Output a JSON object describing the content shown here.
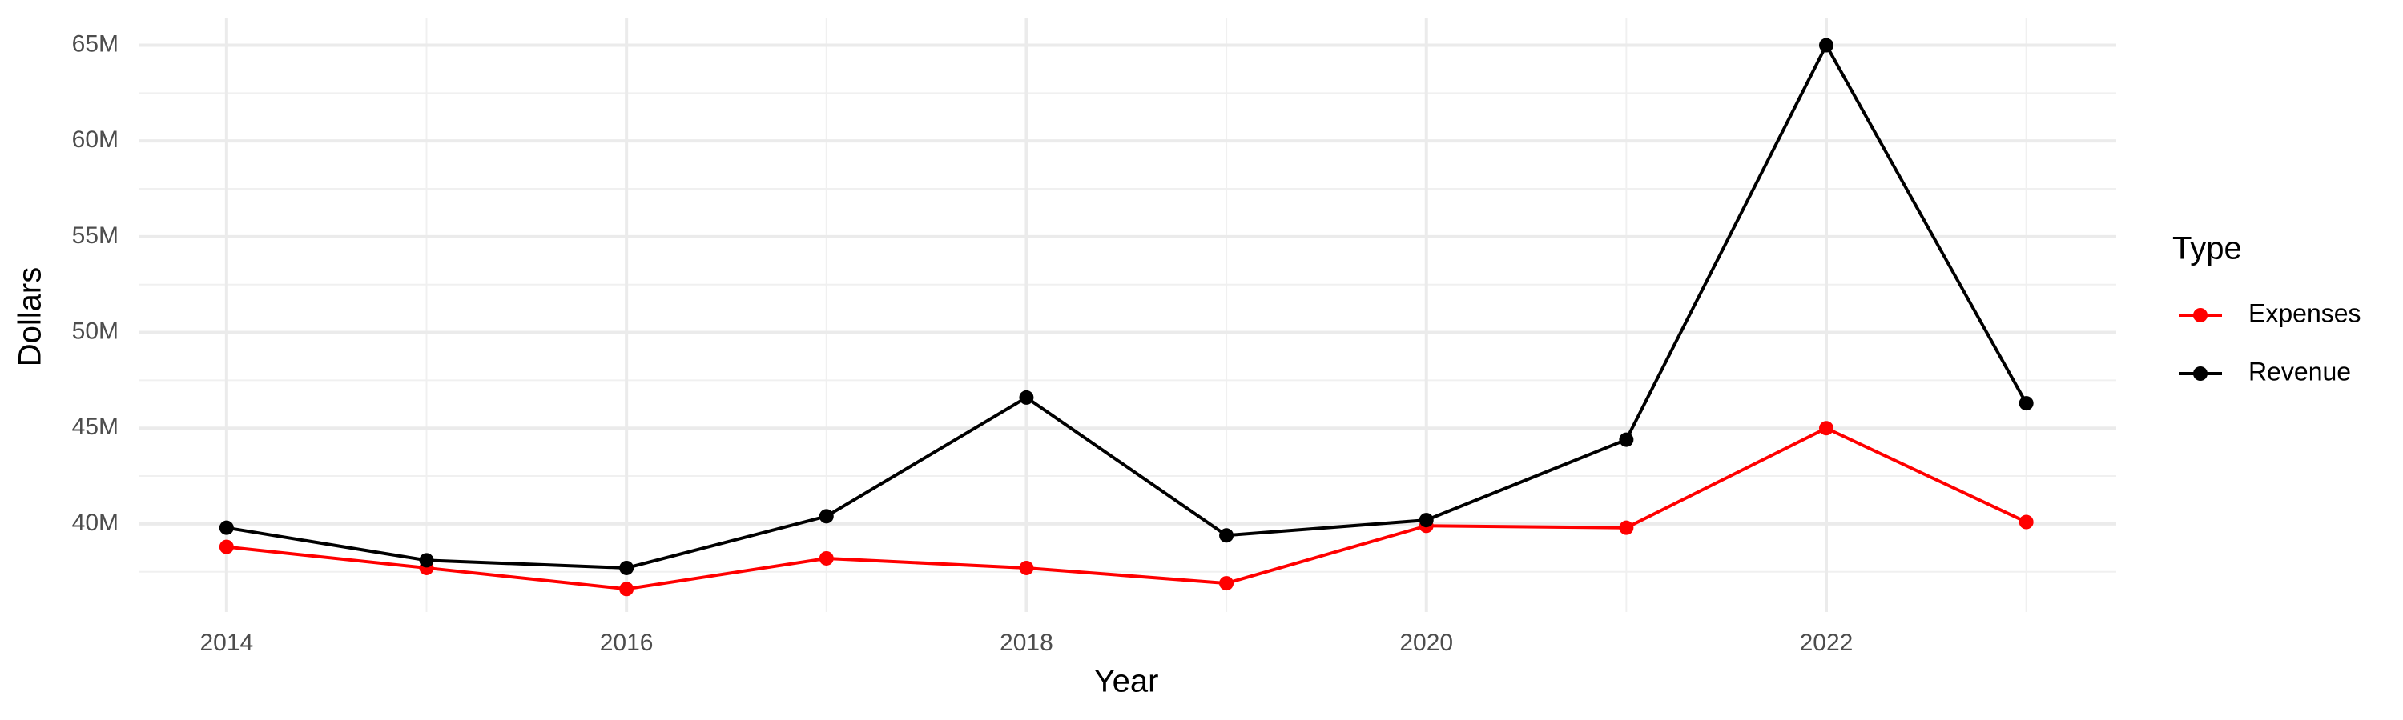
{
  "chart_data": {
    "type": "line",
    "x_label": "Year",
    "y_label": "Dollars",
    "legend_title": "Type",
    "x": [
      2014,
      2015,
      2016,
      2017,
      2018,
      2019,
      2020,
      2021,
      2022,
      2023
    ],
    "series": [
      {
        "name": "Expenses",
        "color": "#ff0000",
        "values": [
          38800000,
          37700000,
          36600000,
          38200000,
          37700000,
          36900000,
          39900000,
          39800000,
          45000000,
          40100000
        ]
      },
      {
        "name": "Revenue",
        "color": "#000000",
        "values": [
          39800000,
          38100000,
          37700000,
          40400000,
          46600000,
          39400000,
          40200000,
          44400000,
          65000000,
          46300000
        ]
      }
    ],
    "xlim": [
      2013.56,
      2023.45
    ],
    "xticks": [
      2014,
      2016,
      2018,
      2020,
      2022
    ],
    "ylim": [
      35400000,
      66400000
    ],
    "yticks": [
      {
        "value": 40000000,
        "label": "40M"
      },
      {
        "value": 45000000,
        "label": "45M"
      },
      {
        "value": 50000000,
        "label": "50M"
      },
      {
        "value": 55000000,
        "label": "55M"
      },
      {
        "value": 60000000,
        "label": "60M"
      },
      {
        "value": 65000000,
        "label": "65M"
      }
    ],
    "grid": true,
    "legend_position": "right"
  }
}
